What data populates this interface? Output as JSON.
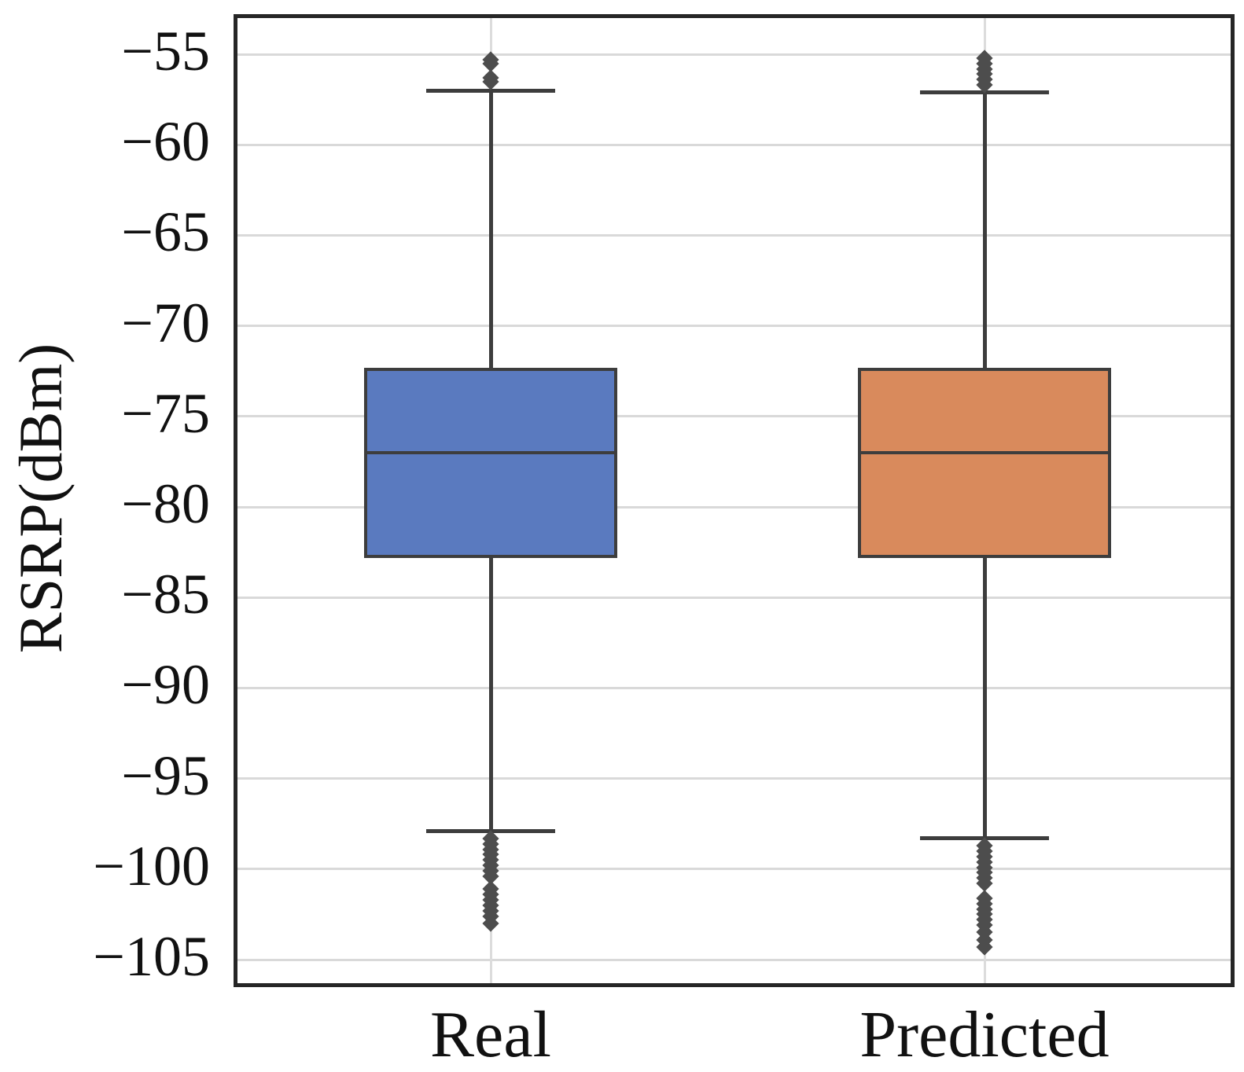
{
  "figure": {
    "ylabel": "RSRP(dBm)"
  },
  "colors": {
    "real_box_fill": "#5a7abf",
    "predicted_box_fill": "#d98a5c",
    "box_edge": "#3d3d3d",
    "whisker": "#3d3d3d",
    "outlier_marker": "#4d4d4d",
    "gridline": "#d9d9d9",
    "spine": "#262626",
    "text": "#111111",
    "background": "#ffffff"
  },
  "chart_data": {
    "type": "box",
    "title": "",
    "xlabel": "",
    "ylabel": "RSRP(dBm)",
    "categories": [
      "Real",
      "Predicted"
    ],
    "yticks": [
      -55,
      -60,
      -65,
      -70,
      -75,
      -80,
      -85,
      -90,
      -95,
      -100,
      -105
    ],
    "ylim": [
      -106.3,
      -53.0
    ],
    "grid": "horizontal gridlines at every ytick; faint vertical gridline at each category center",
    "legend": "none",
    "outlier_marker_shape": "diamond",
    "series": [
      {
        "name": "Real",
        "fill": "#5a7abf",
        "q1": -82.8,
        "median": -77.0,
        "q3": -72.3,
        "whisker_low": -97.9,
        "whisker_high": -57.0,
        "outliers_high": [
          -55.3,
          -55.5,
          -56.3,
          -56.5
        ],
        "outliers_low": [
          -98.3,
          -98.6,
          -98.9,
          -99.2,
          -99.5,
          -99.8,
          -100.1,
          -100.4,
          -101.1,
          -101.4,
          -101.7,
          -102.0,
          -102.3,
          -102.6,
          -103.0
        ]
      },
      {
        "name": "Predicted",
        "fill": "#d98a5c",
        "q1": -82.8,
        "median": -77.0,
        "q3": -72.3,
        "whisker_low": -98.3,
        "whisker_high": -57.1,
        "outliers_high": [
          -55.2,
          -55.5,
          -55.8,
          -56.1,
          -56.4,
          -56.7
        ],
        "outliers_low": [
          -98.7,
          -99.0,
          -99.3,
          -99.6,
          -99.9,
          -100.2,
          -100.5,
          -100.8,
          -101.6,
          -101.9,
          -102.2,
          -102.5,
          -102.8,
          -103.1,
          -103.5,
          -103.9,
          -104.3
        ]
      }
    ]
  }
}
